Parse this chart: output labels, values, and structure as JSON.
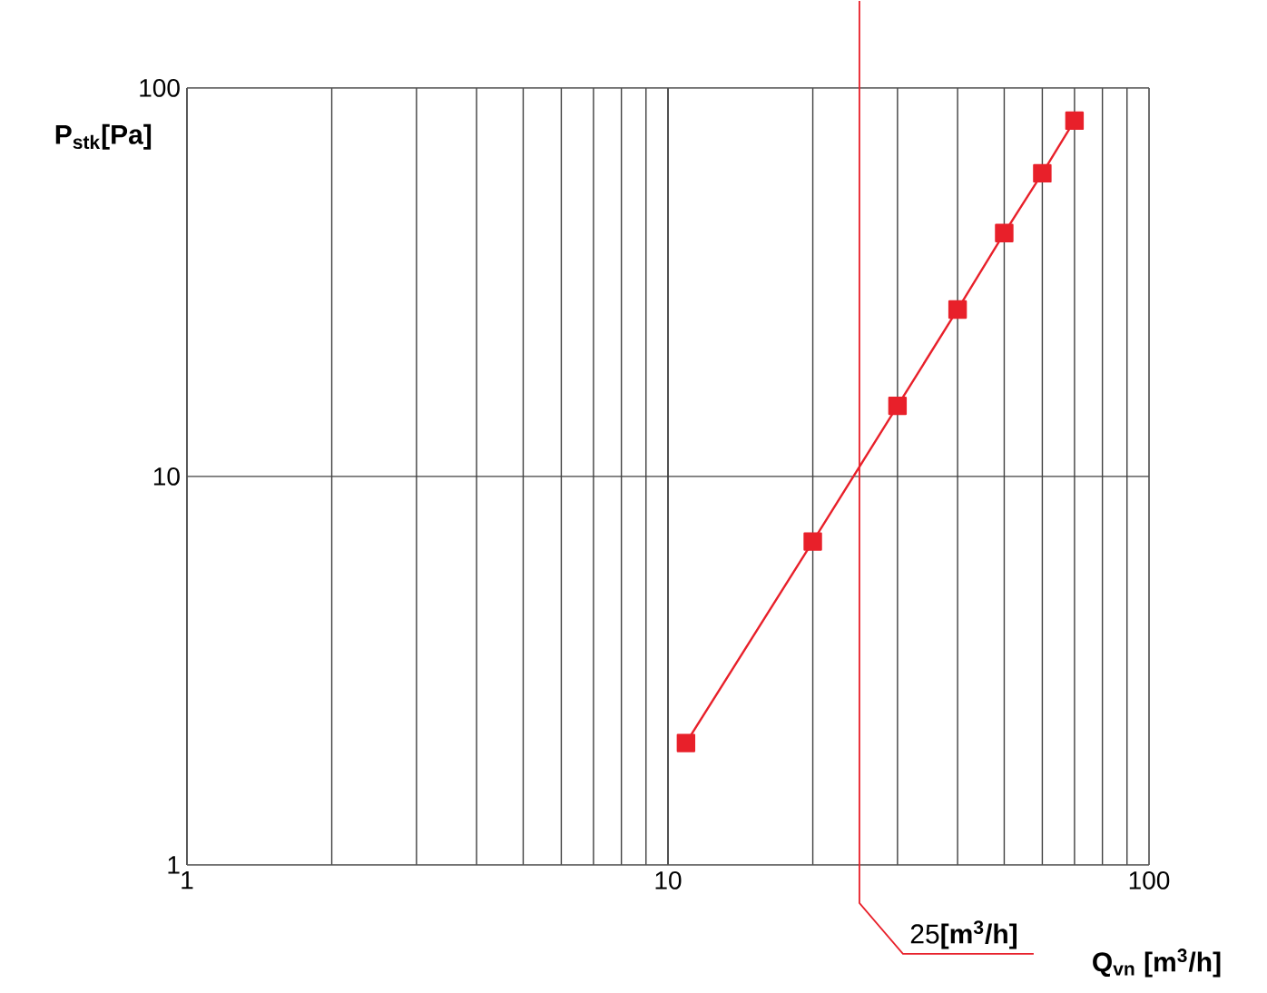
{
  "chart_data": {
    "type": "line",
    "xlabel": "**Q$_{vn}$ [m$^{3}$/h]**",
    "ylabel": "**P$_{stk}$[Pa]**",
    "log": "xy",
    "xlim": [
      1,
      100
    ],
    "ylim": [
      1,
      100
    ],
    "xticks": [
      1,
      10,
      100
    ],
    "yticks": [
      1,
      10,
      100
    ],
    "grid": true,
    "x": [
      10.9,
      20,
      30,
      40,
      50,
      60,
      70
    ],
    "series": [
      {
        "color": "#e8202a",
        "values": [
          2.06,
          6.8,
          15.2,
          26.9,
          42.3,
          60.3,
          82.4
        ]
      }
    ],
    "marker": "square",
    "line_style": "solid",
    "ref_lines": [
      {
        "axis": "x",
        "value": 25,
        "label": "25**[m$^{3}$/h]**",
        "color": "#e8202a"
      }
    ]
  }
}
